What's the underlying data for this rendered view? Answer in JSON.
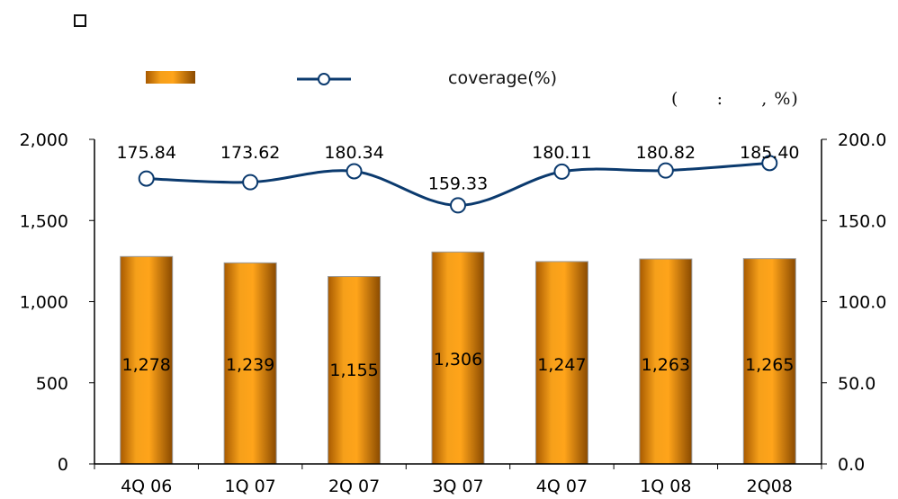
{
  "header": {
    "icon": "checkbox-icon",
    "unit_text": "(      :      , %)"
  },
  "legend": {
    "bar_label": "",
    "line_label": "coverage(%)"
  },
  "chart_data": {
    "type": "bar",
    "categories": [
      "4Q 06",
      "1Q 07",
      "2Q 07",
      "3Q 07",
      "4Q 07",
      "1Q 08",
      "2Q08"
    ],
    "series": [
      {
        "type": "bar",
        "axis": "left",
        "values": [
          1278,
          1239,
          1155,
          1306,
          1247,
          1263,
          1265
        ],
        "labels": [
          "1,278",
          "1,239",
          "1,155",
          "1,306",
          "1,247",
          "1,263",
          "1,265"
        ],
        "color": "#f0960a"
      },
      {
        "name": "coverage(%)",
        "type": "line",
        "axis": "right",
        "values": [
          175.84,
          173.62,
          180.34,
          159.33,
          180.11,
          180.82,
          185.4
        ],
        "labels": [
          "175.84",
          "173.62",
          "180.34",
          "159.33",
          "180.11",
          "180.82",
          "185.40"
        ],
        "color": "#0b3a6e"
      }
    ],
    "y_left": {
      "min": 0,
      "max": 2000,
      "ticks": [
        0,
        500,
        1000,
        1500,
        2000
      ],
      "tick_labels": [
        "0",
        "500",
        "1,000",
        "1,500",
        "2,000"
      ]
    },
    "y_right": {
      "min": 0,
      "max": 200,
      "ticks": [
        0,
        50,
        100,
        150,
        200
      ],
      "tick_labels": [
        "0.0",
        "50.0",
        "100.0",
        "150.0",
        "200.0"
      ]
    },
    "grid": false,
    "legend_position": "top"
  }
}
